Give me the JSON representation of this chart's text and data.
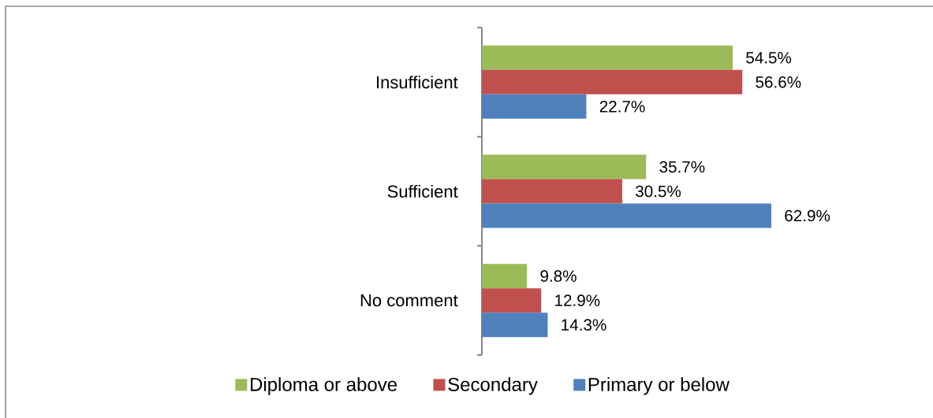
{
  "chart_data": {
    "type": "bar",
    "orientation": "horizontal",
    "categories": [
      "Insufficient",
      "Sufficient",
      "No comment"
    ],
    "series": [
      {
        "name": "Diploma or above",
        "color": "#9bbb59",
        "values": [
          54.5,
          35.7,
          9.8
        ],
        "value_labels": [
          "54.5%",
          "35.7%",
          "9.8%"
        ]
      },
      {
        "name": "Secondary",
        "color": "#c0504d",
        "values": [
          56.6,
          30.5,
          12.9
        ],
        "value_labels": [
          "56.6%",
          "30.5%",
          "12.9%"
        ]
      },
      {
        "name": "Primary or below",
        "color": "#4f81bd",
        "values": [
          22.7,
          62.9,
          14.3
        ],
        "value_labels": [
          "22.7%",
          "62.9%",
          "14.3%"
        ]
      }
    ],
    "legend": "bottom",
    "tick_labels": "y"
  }
}
